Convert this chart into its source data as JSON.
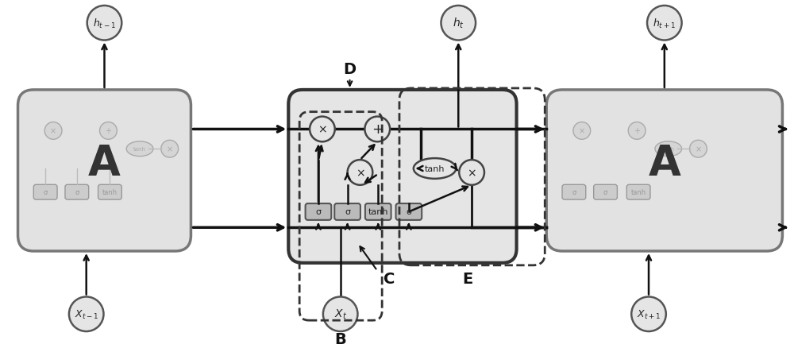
{
  "bg_color": "#ffffff",
  "cell_fill": "#e2e2e2",
  "cell_edge": "#555555",
  "gate_fill": "#bbbbbb",
  "gate_edge": "#555555",
  "circle_fill": "#e2e2e2",
  "circle_edge": "#555555",
  "arrow_color": "#111111",
  "label_A": "A",
  "label_x_t1": "$X_{t-1}$",
  "label_x_t": "$X_t$",
  "label_x_t1p": "$X_{t+1}$",
  "label_h_t1": "$h_{t-1}$",
  "label_h_t": "$h_t$",
  "label_h_t1p": "$h_{t+1}$",
  "label_B": "B",
  "label_C": "C",
  "label_D": "D",
  "label_E": "E",
  "sigma": "σ",
  "tanh": "tanh",
  "multiply": "×",
  "plus": "+"
}
